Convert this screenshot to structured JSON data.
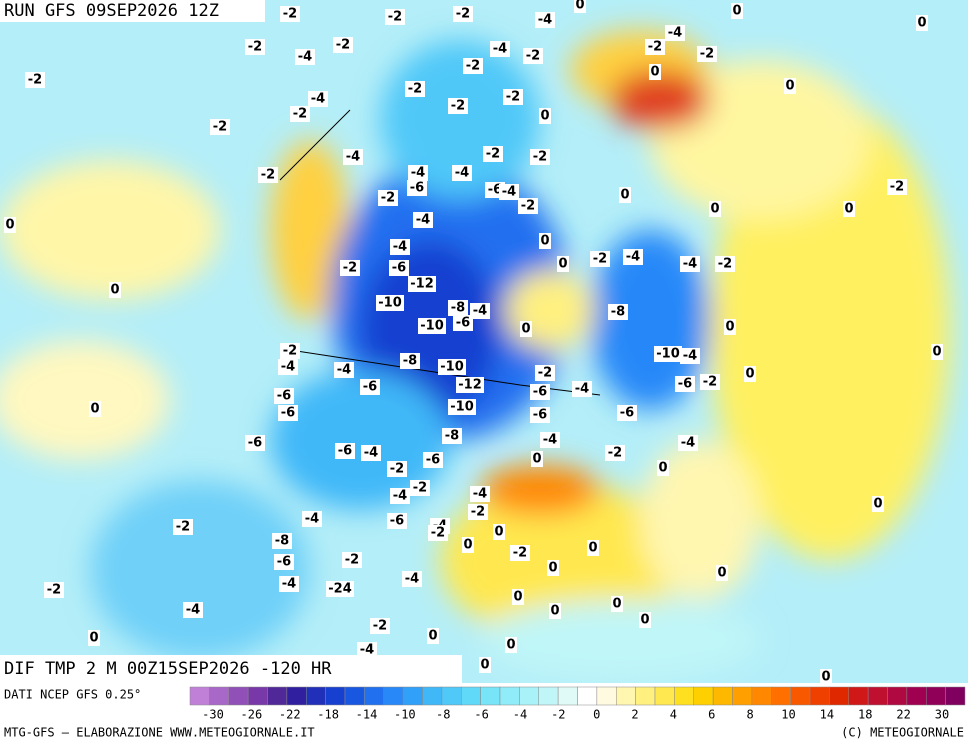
{
  "header": {
    "run": "RUN GFS 09SEP2026 12Z",
    "field": "DIF TMP 2 M 00Z15SEP2026 -120 HR",
    "source": "DATI NCEP GFS 0.25°",
    "credit": "MTG-GFS — ELABORAZIONE WWW.METEOGIORNALE.IT",
    "copyright": "(C) METEOGIORNALE"
  },
  "colorbar": {
    "colors": [
      "#c080d8",
      "#a868c8",
      "#9050b8",
      "#7838a8",
      "#502898",
      "#3020a0",
      "#2030b8",
      "#1840d0",
      "#1858e0",
      "#2070f0",
      "#2888f8",
      "#30a0f8",
      "#40b8f8",
      "#50c8f8",
      "#60d8f8",
      "#78e4f8",
      "#90ecf8",
      "#a8f2f8",
      "#c0f6f8",
      "#e0faf8",
      "#ffffff",
      "#fffae0",
      "#fff6b0",
      "#fff080",
      "#ffe850",
      "#ffe020",
      "#ffd000",
      "#ffb800",
      "#ffa000",
      "#ff8800",
      "#ff7000",
      "#f85800",
      "#f04000",
      "#e02800",
      "#d01818",
      "#c01030",
      "#b00840",
      "#a00050",
      "#900058",
      "#800060"
    ],
    "ticks": [
      -30,
      -26,
      -22,
      -18,
      -14,
      -10,
      -8,
      -6,
      -4,
      -2,
      0,
      2,
      4,
      6,
      8,
      10,
      14,
      18,
      22,
      30
    ]
  },
  "contour_labels": [
    -2,
    -2,
    -2,
    -4,
    0,
    0,
    0,
    -4,
    -2,
    -2,
    0,
    0,
    -2,
    -4,
    -2,
    -2,
    -4,
    -2,
    -2,
    -2,
    -4,
    -2,
    -2,
    -2,
    0,
    -2,
    -4,
    -2,
    -4,
    -4,
    -2,
    -2,
    -6,
    -6,
    -4,
    -2,
    -2,
    0,
    0,
    0,
    -2,
    0,
    -4,
    0,
    -4,
    -6,
    -2,
    0,
    -2,
    -4,
    -4,
    -2,
    0,
    -12,
    -10,
    -8,
    -4,
    -10,
    -6,
    -8,
    0,
    0,
    -2,
    -4,
    -4,
    -8,
    -10,
    -2,
    -10,
    -4,
    0,
    -6,
    -12,
    -6,
    -4,
    -2,
    0,
    -6,
    -6,
    -6,
    0,
    -10,
    -6,
    -6,
    -8,
    -6,
    -6,
    -4,
    -4,
    -2,
    -4,
    -6,
    -2,
    0,
    0,
    -2,
    -4,
    -4,
    -2,
    0,
    -4,
    -6,
    -2,
    -4,
    -2,
    0,
    0,
    -8,
    -2,
    -2,
    0,
    -6,
    -4,
    -24,
    -4,
    0,
    0,
    -2,
    0,
    -4,
    0,
    0,
    -2,
    0,
    0,
    -4,
    0,
    0,
    0,
    0
  ]
}
